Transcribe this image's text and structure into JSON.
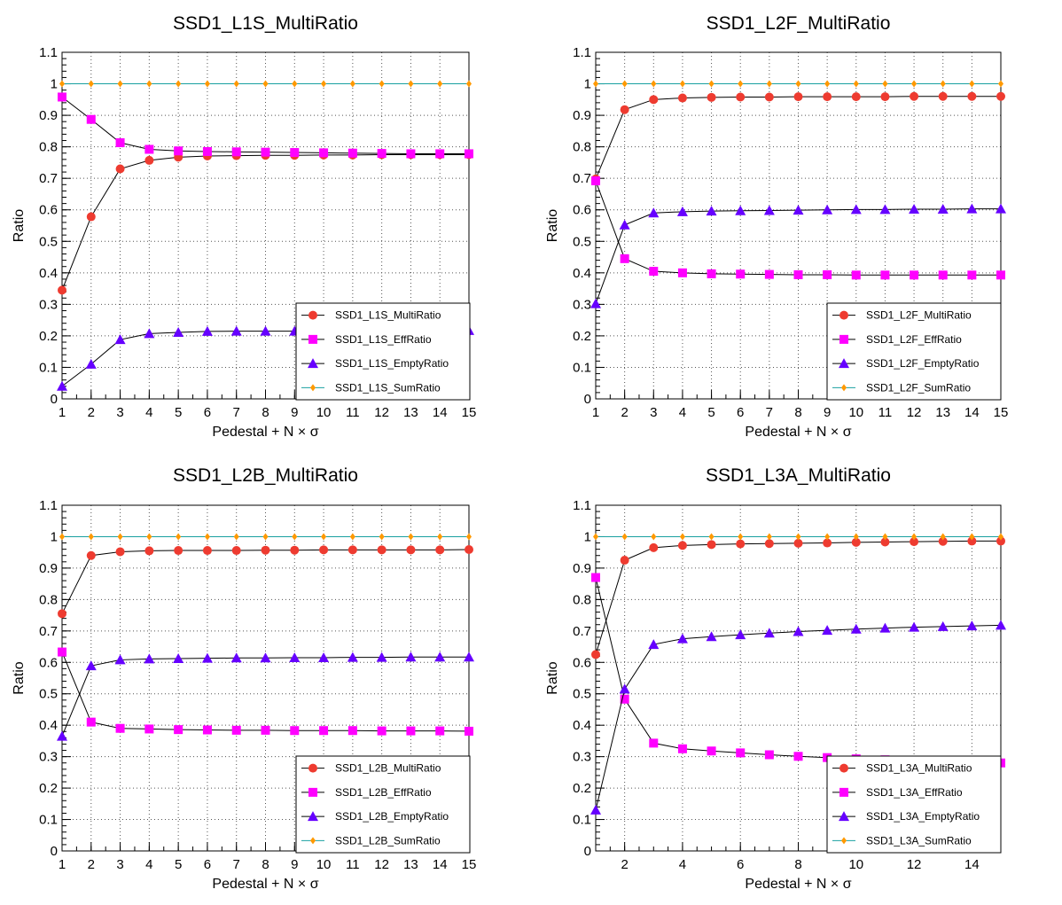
{
  "chart_data": [
    {
      "type": "line",
      "title": "SSD1_L1S_MultiRatio",
      "xlabel": "Pedestal + N × σ",
      "ylabel": "Ratio",
      "xlim": [
        1,
        15
      ],
      "ylim": [
        0,
        1.1
      ],
      "grid": true,
      "legend_position": "bottom-right",
      "x_ticks": [
        "1",
        "2",
        "3",
        "4",
        "5",
        "6",
        "7",
        "8",
        "9",
        "10",
        "11",
        "12",
        "13",
        "14",
        "15"
      ],
      "y_ticks": [
        "0",
        "0.1",
        "0.2",
        "0.3",
        "0.4",
        "0.5",
        "0.6",
        "0.7",
        "0.8",
        "0.9",
        "1",
        "1.1"
      ],
      "x": [
        1,
        2,
        3,
        4,
        5,
        6,
        7,
        8,
        9,
        10,
        11,
        12,
        13,
        14,
        15
      ],
      "series": [
        {
          "name": "SSD1_L1S_MultiRatio",
          "marker": "circle",
          "color": "#ee3b30",
          "values": [
            0.345,
            0.578,
            0.73,
            0.757,
            0.767,
            0.771,
            0.772,
            0.773,
            0.773,
            0.774,
            0.774,
            0.775,
            0.775,
            0.775,
            0.775
          ]
        },
        {
          "name": "SSD1_L1S_EffRatio",
          "marker": "square",
          "color": "#ff00ff",
          "values": [
            0.958,
            0.887,
            0.813,
            0.792,
            0.787,
            0.785,
            0.784,
            0.783,
            0.782,
            0.781,
            0.78,
            0.779,
            0.778,
            0.778,
            0.778
          ]
        },
        {
          "name": "SSD1_L1S_EmptyRatio",
          "marker": "triangle",
          "color": "#6600ff",
          "values": [
            0.04,
            0.11,
            0.188,
            0.207,
            0.211,
            0.214,
            0.215,
            0.215,
            0.215,
            0.216,
            0.216,
            0.216,
            0.216,
            0.216,
            0.217
          ]
        },
        {
          "name": "SSD1_L1S_SumRatio",
          "marker": "diamond",
          "color": "#ff9900",
          "values": [
            1,
            1,
            1,
            1,
            1,
            1,
            1,
            1,
            1,
            1,
            1,
            1,
            1,
            1,
            1
          ]
        }
      ]
    },
    {
      "type": "line",
      "title": "SSD1_L2F_MultiRatio",
      "xlabel": "Pedestal + N × σ",
      "ylabel": "Ratio",
      "xlim": [
        1,
        15
      ],
      "ylim": [
        0,
        1.1
      ],
      "grid": true,
      "legend_position": "bottom-right",
      "x_ticks": [
        "1",
        "2",
        "3",
        "4",
        "5",
        "6",
        "7",
        "8",
        "9",
        "10",
        "11",
        "12",
        "13",
        "14",
        "15"
      ],
      "y_ticks": [
        "0",
        "0.1",
        "0.2",
        "0.3",
        "0.4",
        "0.5",
        "0.6",
        "0.7",
        "0.8",
        "0.9",
        "1",
        "1.1"
      ],
      "x": [
        1,
        2,
        3,
        4,
        5,
        6,
        7,
        8,
        9,
        10,
        11,
        12,
        13,
        14,
        15
      ],
      "series": [
        {
          "name": "SSD1_L2F_MultiRatio",
          "marker": "circle",
          "color": "#ee3b30",
          "values": [
            0.698,
            0.918,
            0.95,
            0.955,
            0.957,
            0.958,
            0.958,
            0.959,
            0.959,
            0.959,
            0.959,
            0.96,
            0.96,
            0.96,
            0.96
          ]
        },
        {
          "name": "SSD1_L2F_EffRatio",
          "marker": "square",
          "color": "#ff00ff",
          "values": [
            0.692,
            0.445,
            0.405,
            0.4,
            0.397,
            0.396,
            0.395,
            0.394,
            0.394,
            0.393,
            0.393,
            0.393,
            0.393,
            0.393,
            0.393
          ]
        },
        {
          "name": "SSD1_L2F_EmptyRatio",
          "marker": "triangle",
          "color": "#6600ff",
          "values": [
            0.302,
            0.552,
            0.59,
            0.594,
            0.596,
            0.597,
            0.598,
            0.599,
            0.6,
            0.601,
            0.601,
            0.602,
            0.602,
            0.603,
            0.603
          ]
        },
        {
          "name": "SSD1_L2F_SumRatio",
          "marker": "diamond",
          "color": "#ff9900",
          "values": [
            1,
            1,
            1,
            1,
            1,
            1,
            1,
            1,
            1,
            1,
            1,
            1,
            1,
            1,
            1
          ]
        }
      ]
    },
    {
      "type": "line",
      "title": "SSD1_L2B_MultiRatio",
      "xlabel": "Pedestal + N × σ",
      "ylabel": "Ratio",
      "xlim": [
        1,
        15
      ],
      "ylim": [
        0,
        1.1
      ],
      "grid": true,
      "legend_position": "bottom-right",
      "x_ticks": [
        "1",
        "2",
        "3",
        "4",
        "5",
        "6",
        "7",
        "8",
        "9",
        "10",
        "11",
        "12",
        "13",
        "14",
        "15"
      ],
      "y_ticks": [
        "0",
        "0.1",
        "0.2",
        "0.3",
        "0.4",
        "0.5",
        "0.6",
        "0.7",
        "0.8",
        "0.9",
        "1",
        "1.1"
      ],
      "x": [
        1,
        2,
        3,
        4,
        5,
        6,
        7,
        8,
        9,
        10,
        11,
        12,
        13,
        14,
        15
      ],
      "series": [
        {
          "name": "SSD1_L2B_MultiRatio",
          "marker": "circle",
          "color": "#ee3b30",
          "values": [
            0.755,
            0.94,
            0.952,
            0.955,
            0.956,
            0.956,
            0.956,
            0.957,
            0.957,
            0.958,
            0.958,
            0.958,
            0.958,
            0.958,
            0.959
          ]
        },
        {
          "name": "SSD1_L2B_EffRatio",
          "marker": "square",
          "color": "#ff00ff",
          "values": [
            0.633,
            0.41,
            0.39,
            0.388,
            0.386,
            0.385,
            0.384,
            0.384,
            0.383,
            0.383,
            0.383,
            0.382,
            0.382,
            0.382,
            0.381
          ]
        },
        {
          "name": "SSD1_L2B_EmptyRatio",
          "marker": "triangle",
          "color": "#6600ff",
          "values": [
            0.365,
            0.589,
            0.608,
            0.611,
            0.612,
            0.613,
            0.614,
            0.614,
            0.615,
            0.615,
            0.616,
            0.616,
            0.617,
            0.617,
            0.617
          ]
        },
        {
          "name": "SSD1_L2B_SumRatio",
          "marker": "diamond",
          "color": "#ff9900",
          "values": [
            1,
            1,
            1,
            1,
            1,
            1,
            1,
            1,
            1,
            1,
            1,
            1,
            1,
            1,
            1
          ]
        }
      ]
    },
    {
      "type": "line",
      "title": "SSD1_L3A_MultiRatio",
      "xlabel": "Pedestal + N × σ",
      "ylabel": "Ratio",
      "xlim": [
        1,
        15
      ],
      "ylim": [
        0,
        1.1
      ],
      "grid": true,
      "legend_position": "bottom-right",
      "x_ticks": [
        "2",
        "4",
        "6",
        "8",
        "10",
        "12",
        "14"
      ],
      "y_ticks": [
        "0",
        "0.1",
        "0.2",
        "0.3",
        "0.4",
        "0.5",
        "0.6",
        "0.7",
        "0.8",
        "0.9",
        "1",
        "1.1"
      ],
      "x": [
        1,
        2,
        3,
        4,
        5,
        6,
        7,
        8,
        9,
        10,
        11,
        12,
        13,
        14,
        15
      ],
      "series": [
        {
          "name": "SSD1_L3A_MultiRatio",
          "marker": "circle",
          "color": "#ee3b30",
          "values": [
            0.625,
            0.925,
            0.965,
            0.972,
            0.975,
            0.977,
            0.978,
            0.979,
            0.98,
            0.982,
            0.983,
            0.984,
            0.985,
            0.986,
            0.986
          ]
        },
        {
          "name": "SSD1_L3A_EffRatio",
          "marker": "square",
          "color": "#ff00ff",
          "values": [
            0.87,
            0.483,
            0.343,
            0.325,
            0.318,
            0.312,
            0.306,
            0.301,
            0.297,
            0.293,
            0.29,
            0.287,
            0.285,
            0.282,
            0.28
          ]
        },
        {
          "name": "SSD1_L3A_EmptyRatio",
          "marker": "triangle",
          "color": "#6600ff",
          "values": [
            0.13,
            0.515,
            0.657,
            0.675,
            0.682,
            0.688,
            0.693,
            0.698,
            0.702,
            0.706,
            0.709,
            0.712,
            0.714,
            0.716,
            0.718
          ]
        },
        {
          "name": "SSD1_L3A_SumRatio",
          "marker": "diamond",
          "color": "#ff9900",
          "values": [
            1,
            1,
            1,
            1,
            1,
            1,
            1,
            1,
            1,
            1,
            1,
            1,
            1,
            1,
            1
          ]
        }
      ]
    }
  ],
  "colors": {
    "sum_line": "#19a0a0",
    "grid": "#555555",
    "axis": "#000000"
  }
}
